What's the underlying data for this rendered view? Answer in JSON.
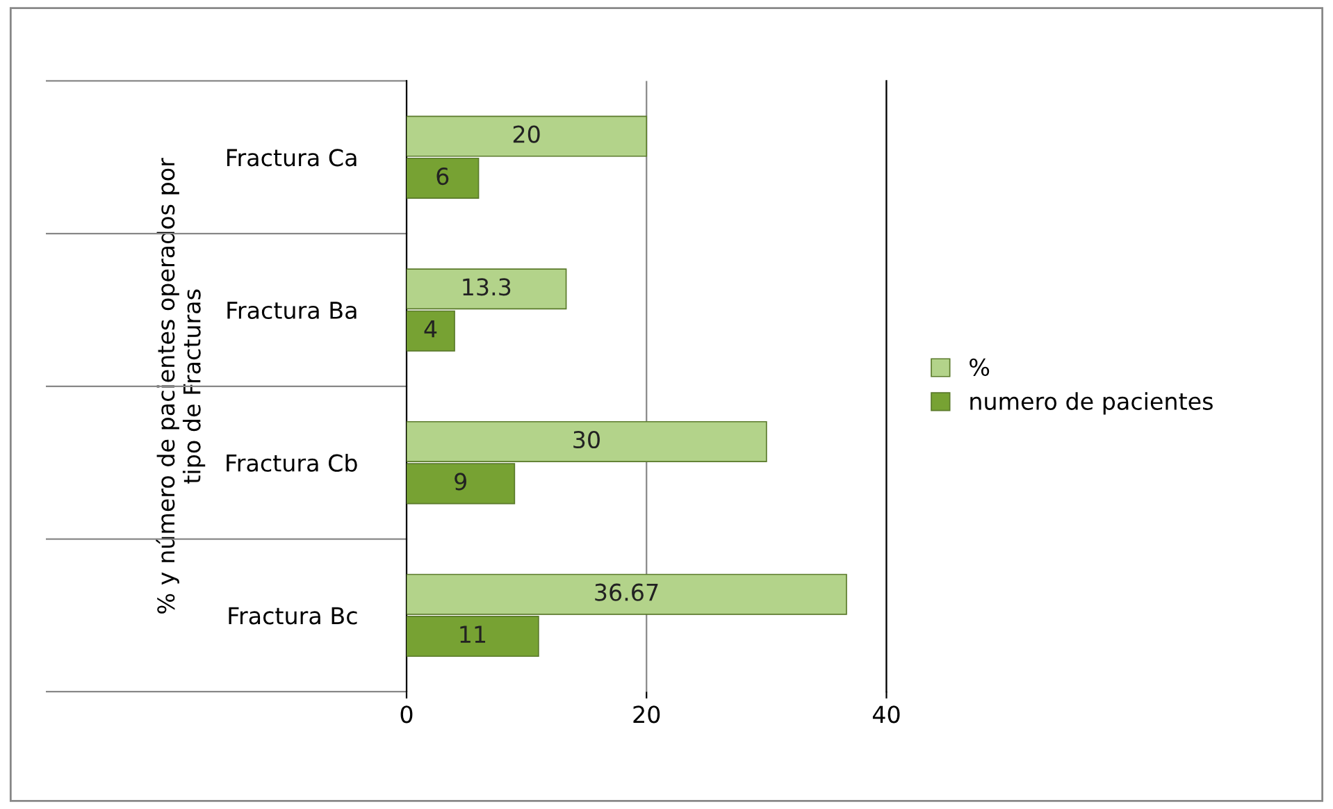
{
  "chart_data": {
    "type": "bar",
    "orientation": "horizontal",
    "ylabel": "% y número de pacientes operados por\ntipo de Fracturas",
    "categories": [
      "Fractura Ca",
      "Fractura Ba",
      "Fractura Cb",
      "Fractura Bc"
    ],
    "series": [
      {
        "name": "%",
        "color": "#b3d38a",
        "values": [
          20,
          13.3,
          30,
          36.67
        ]
      },
      {
        "name": "numero de pacientes",
        "color": "#77a233",
        "values": [
          6,
          4,
          9,
          11
        ]
      }
    ],
    "xlim": [
      0,
      40
    ],
    "xticks": [
      0,
      20,
      40
    ],
    "grid": "x",
    "legend": "right",
    "data_labels": true
  }
}
